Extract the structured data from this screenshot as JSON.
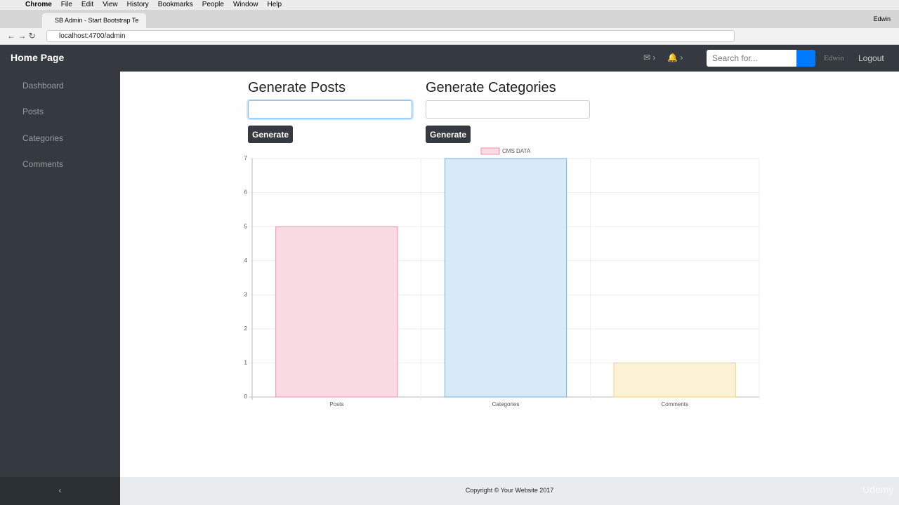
{
  "menubar": {
    "items": [
      "Chrome",
      "File",
      "Edit",
      "View",
      "History",
      "Bookmarks",
      "People",
      "Window",
      "Help"
    ]
  },
  "browser": {
    "tab_title": "SB Admin - Start Bootstrap Te",
    "url": "localhost:4700/admin",
    "profile": "Edwin"
  },
  "navbar": {
    "brand": "Home Page",
    "search_placeholder": "Search for...",
    "user": "Edwin",
    "logout": "Logout"
  },
  "sidebar": {
    "items": [
      "Dashboard",
      "Posts",
      "Categories",
      "Comments"
    ]
  },
  "forms": [
    {
      "title": "Generate Posts",
      "button": "Generate"
    },
    {
      "title": "Generate Categories",
      "button": "Generate"
    }
  ],
  "chart_data": {
    "type": "bar",
    "categories": [
      "Posts",
      "Categories",
      "Comments"
    ],
    "series": [
      {
        "name": "CMS DATA",
        "color": "#fadbe3",
        "values": [
          5,
          7,
          1
        ]
      }
    ],
    "colors": [
      "#fadbe3",
      "#d8e9f8",
      "#fef2d6"
    ],
    "border_colors": [
      "#f08fa8",
      "#6fb3e0",
      "#f5d27a"
    ],
    "ylim": [
      0,
      7
    ],
    "yticks": [
      0,
      1,
      2,
      3,
      4,
      5,
      6,
      7
    ],
    "grid": true
  },
  "footer": {
    "text": "Copyright © Your Website 2017"
  },
  "watermark": "Udemy"
}
